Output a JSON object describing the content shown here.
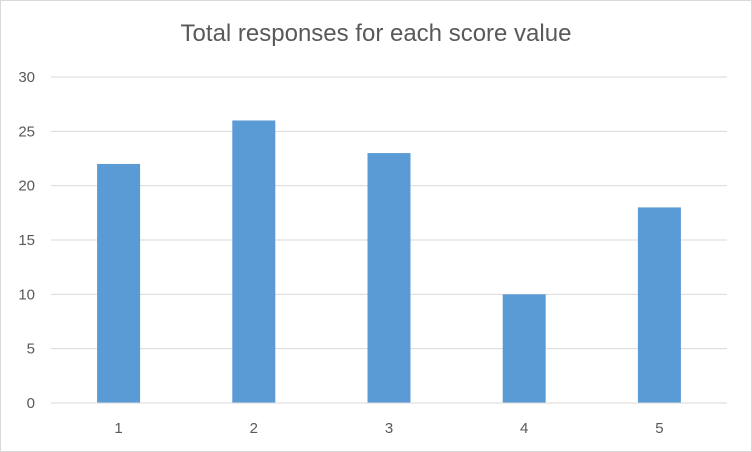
{
  "chart_data": {
    "type": "bar",
    "title": "Total responses for each score value",
    "categories": [
      "1",
      "2",
      "3",
      "4",
      "5"
    ],
    "values": [
      22,
      26,
      23,
      10,
      18
    ],
    "xlabel": "",
    "ylabel": "",
    "ylim": [
      0,
      30
    ],
    "yticks": [
      0,
      5,
      10,
      15,
      20,
      25,
      30
    ],
    "grid": true,
    "legend": "none",
    "bar_color": "#5b9bd5",
    "grid_color": "#d9d9d9"
  }
}
